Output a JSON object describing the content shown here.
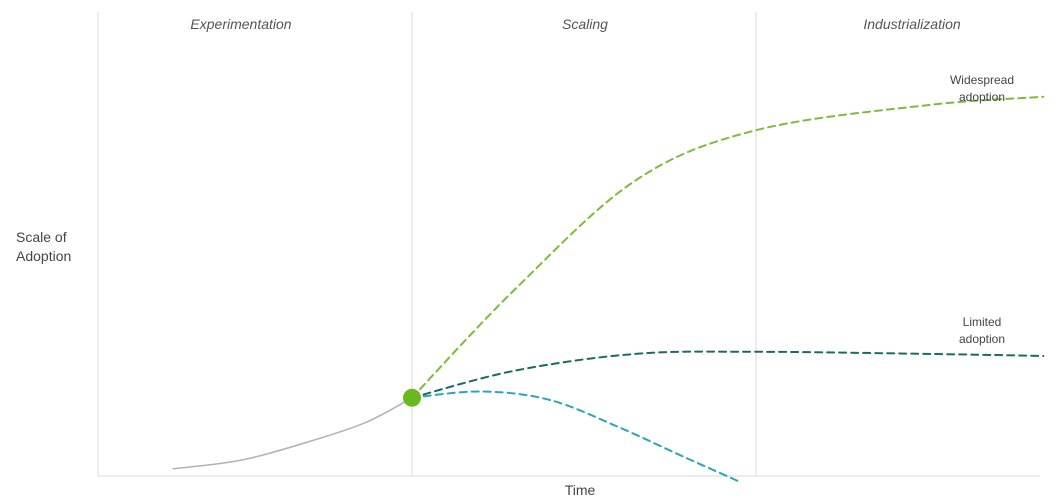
{
  "chart_data": {
    "type": "line",
    "title": "",
    "xlabel": "Time",
    "ylabel_lines": [
      "Scale of",
      "Adoption"
    ],
    "phases": [
      "Experimentation",
      "Scaling",
      "Industrialization"
    ],
    "xlim": [
      0,
      3
    ],
    "ylim": [
      0,
      1
    ],
    "phase_boundaries": [
      1,
      2
    ],
    "transition_point": {
      "x": 1.0,
      "y": 0.18,
      "color": "#6ab820"
    },
    "series": [
      {
        "key": "history",
        "color": "#b3b3b3",
        "dashed": false,
        "points": [
          [
            0.24,
            0.01
          ],
          [
            0.45,
            0.03
          ],
          [
            0.65,
            0.07
          ],
          [
            0.85,
            0.12
          ],
          [
            1.0,
            0.18
          ]
        ]
      },
      {
        "key": "widespread",
        "name_lines": [
          "Widespread",
          "adoption"
        ],
        "color": "#7dbb3c",
        "dashed": true,
        "points": [
          [
            1.0,
            0.18
          ],
          [
            1.3,
            0.44
          ],
          [
            1.65,
            0.7
          ],
          [
            2.0,
            0.82
          ],
          [
            2.5,
            0.88
          ],
          [
            2.84,
            0.9
          ]
        ]
      },
      {
        "key": "limited",
        "name_lines": [
          "Limited",
          "adoption"
        ],
        "color": "#1c6b61",
        "dashed": true,
        "points": [
          [
            1.0,
            0.18
          ],
          [
            1.3,
            0.245
          ],
          [
            1.65,
            0.285
          ],
          [
            2.0,
            0.29
          ],
          [
            2.5,
            0.285
          ],
          [
            2.84,
            0.28
          ]
        ]
      },
      {
        "key": "abandoned",
        "color": "#2aa6bb",
        "dashed": true,
        "points": [
          [
            1.0,
            0.18
          ],
          [
            1.2,
            0.195
          ],
          [
            1.4,
            0.175
          ],
          [
            1.6,
            0.11
          ],
          [
            1.8,
            0.035
          ],
          [
            1.95,
            -0.02
          ]
        ]
      }
    ]
  }
}
